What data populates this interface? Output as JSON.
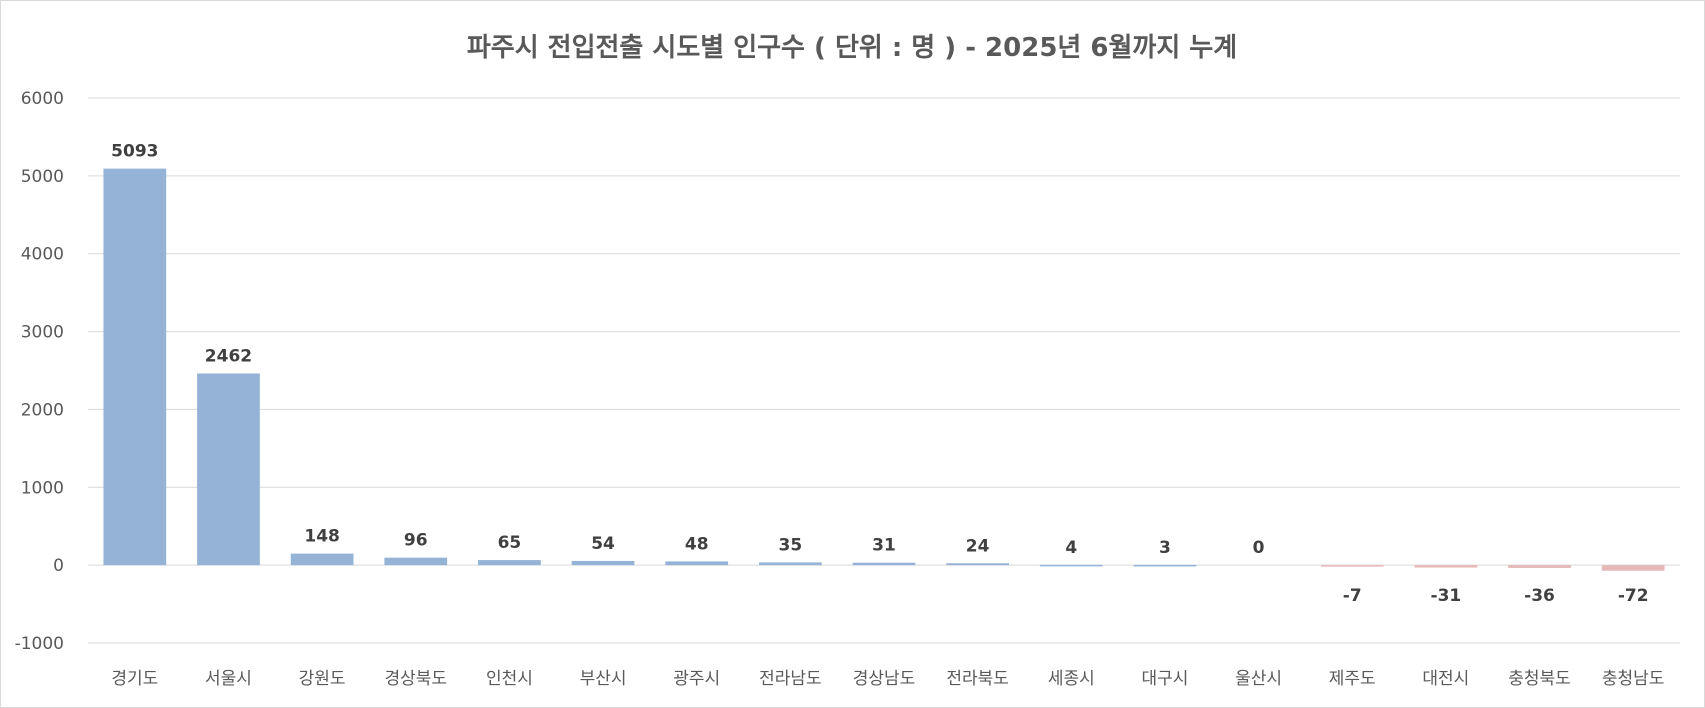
{
  "chart_data": {
    "type": "bar",
    "title": "파주시 전입전출 시도별 인구수 ( 단위 : 명 ) - 2025년 6월까지 누계",
    "xlabel": "",
    "ylabel": "",
    "categories": [
      "경기도",
      "서울시",
      "강원도",
      "경상북도",
      "인천시",
      "부산시",
      "광주시",
      "전라남도",
      "경상남도",
      "전라북도",
      "세종시",
      "대구시",
      "울산시",
      "제주도",
      "대전시",
      "충청북도",
      "충청남도"
    ],
    "values": [
      5093,
      2462,
      148,
      96,
      65,
      54,
      48,
      35,
      31,
      24,
      4,
      3,
      0,
      -7,
      -31,
      -36,
      -72
    ],
    "ylim": [
      -1000,
      6000
    ],
    "yticks": [
      -1000,
      0,
      1000,
      2000,
      3000,
      4000,
      5000,
      6000
    ],
    "grid": true,
    "legend": "none",
    "colors": {
      "positive": "#95b3d7",
      "negative": "#e6b9b8",
      "grid": "#d9d9d9",
      "axis_text": "#595959",
      "label_text": "#404040"
    }
  }
}
